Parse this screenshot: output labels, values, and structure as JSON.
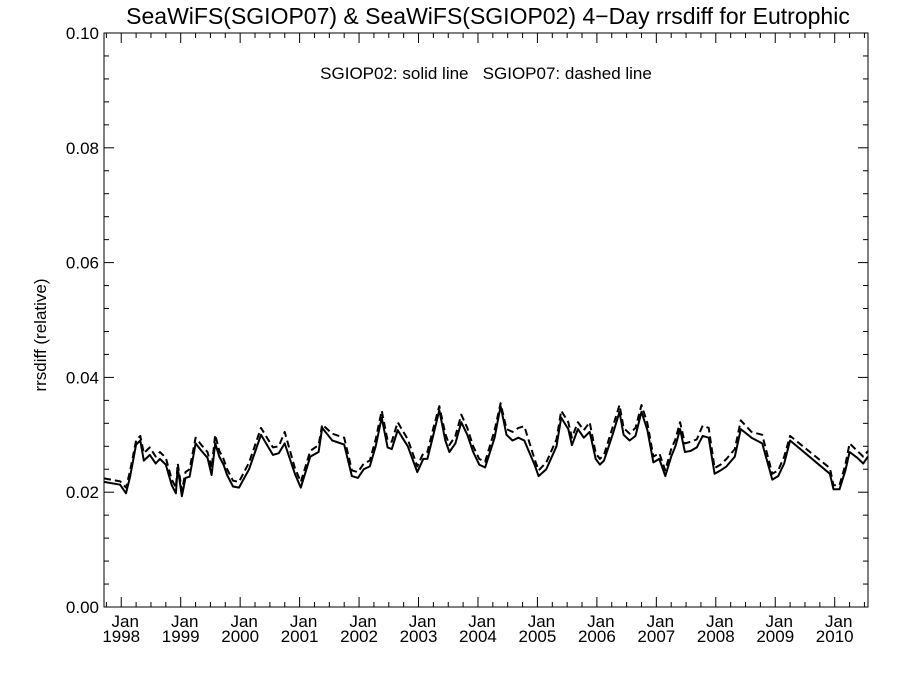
{
  "chart_data": {
    "type": "line",
    "title": "SeaWiFS(SGIOP07) & SeaWiFS(SGIOP02) 4−Day rrsdiff for Eutrophic",
    "annotation": "SGIOP02: solid line   SGIOP07: dashed line",
    "xlabel": "",
    "ylabel": "rrsdiff (relative)",
    "xlim": [
      1997.71,
      2010.56
    ],
    "ylim": [
      0.0,
      0.1
    ],
    "grid": false,
    "legend": "none",
    "y_ticks": [
      {
        "value": 0.0,
        "label": "0.00"
      },
      {
        "value": 0.02,
        "label": "0.02"
      },
      {
        "value": 0.04,
        "label": "0.04"
      },
      {
        "value": 0.06,
        "label": "0.06"
      },
      {
        "value": 0.08,
        "label": "0.08"
      },
      {
        "value": 0.1,
        "label": "0.10"
      }
    ],
    "x_ticks": [
      {
        "value": 1998,
        "month": "Jan",
        "year": "1998"
      },
      {
        "value": 1999,
        "month": "Jan",
        "year": "1999"
      },
      {
        "value": 2000,
        "month": "Jan",
        "year": "2000"
      },
      {
        "value": 2001,
        "month": "Jan",
        "year": "2001"
      },
      {
        "value": 2002,
        "month": "Jan",
        "year": "2002"
      },
      {
        "value": 2003,
        "month": "Jan",
        "year": "2003"
      },
      {
        "value": 2004,
        "month": "Jan",
        "year": "2004"
      },
      {
        "value": 2005,
        "month": "Jan",
        "year": "2005"
      },
      {
        "value": 2006,
        "month": "Jan",
        "year": "2006"
      },
      {
        "value": 2007,
        "month": "Jan",
        "year": "2007"
      },
      {
        "value": 2008,
        "month": "Jan",
        "year": "2008"
      },
      {
        "value": 2009,
        "month": "Jan",
        "year": "2009"
      },
      {
        "value": 2010,
        "month": "Jan",
        "year": "2010"
      }
    ],
    "series": [
      {
        "style": "solid",
        "points": [
          [
            1997.71,
            0.0218
          ],
          [
            1997.98,
            0.0213
          ],
          [
            1998.08,
            0.0198
          ],
          [
            1998.15,
            0.0228
          ],
          [
            1998.25,
            0.0283
          ],
          [
            1998.32,
            0.029
          ],
          [
            1998.38,
            0.0255
          ],
          [
            1998.48,
            0.0265
          ],
          [
            1998.58,
            0.025
          ],
          [
            1998.65,
            0.0258
          ],
          [
            1998.75,
            0.0248
          ],
          [
            1998.85,
            0.0212
          ],
          [
            1998.92,
            0.0198
          ],
          [
            1998.95,
            0.0243
          ],
          [
            1999.02,
            0.0193
          ],
          [
            1999.08,
            0.0225
          ],
          [
            1999.15,
            0.0227
          ],
          [
            1999.25,
            0.0285
          ],
          [
            1999.35,
            0.0272
          ],
          [
            1999.45,
            0.026
          ],
          [
            1999.52,
            0.023
          ],
          [
            1999.58,
            0.0285
          ],
          [
            1999.65,
            0.0262
          ],
          [
            1999.72,
            0.0248
          ],
          [
            1999.78,
            0.023
          ],
          [
            1999.88,
            0.021
          ],
          [
            1999.98,
            0.0208
          ],
          [
            2000.15,
            0.024
          ],
          [
            2000.35,
            0.03
          ],
          [
            2000.55,
            0.0265
          ],
          [
            2000.65,
            0.0268
          ],
          [
            2000.75,
            0.0285
          ],
          [
            2000.92,
            0.0232
          ],
          [
            2001.02,
            0.0208
          ],
          [
            2001.18,
            0.0262
          ],
          [
            2001.32,
            0.027
          ],
          [
            2001.38,
            0.0312
          ],
          [
            2001.55,
            0.029
          ],
          [
            2001.75,
            0.0283
          ],
          [
            2001.88,
            0.0228
          ],
          [
            2001.98,
            0.0225
          ],
          [
            2002.08,
            0.024
          ],
          [
            2002.18,
            0.0245
          ],
          [
            2002.28,
            0.028
          ],
          [
            2002.38,
            0.033
          ],
          [
            2002.48,
            0.0278
          ],
          [
            2002.55,
            0.0275
          ],
          [
            2002.65,
            0.0308
          ],
          [
            2002.82,
            0.028
          ],
          [
            2002.98,
            0.0235
          ],
          [
            2003.08,
            0.0258
          ],
          [
            2003.15,
            0.0258
          ],
          [
            2003.25,
            0.03
          ],
          [
            2003.35,
            0.0343
          ],
          [
            2003.45,
            0.029
          ],
          [
            2003.52,
            0.027
          ],
          [
            2003.62,
            0.0285
          ],
          [
            2003.72,
            0.0322
          ],
          [
            2003.82,
            0.03
          ],
          [
            2003.92,
            0.027
          ],
          [
            2004.02,
            0.0248
          ],
          [
            2004.12,
            0.0243
          ],
          [
            2004.28,
            0.0295
          ],
          [
            2004.38,
            0.035
          ],
          [
            2004.48,
            0.03
          ],
          [
            2004.58,
            0.029
          ],
          [
            2004.68,
            0.0295
          ],
          [
            2004.78,
            0.029
          ],
          [
            2004.95,
            0.0248
          ],
          [
            2005.02,
            0.0228
          ],
          [
            2005.15,
            0.024
          ],
          [
            2005.32,
            0.028
          ],
          [
            2005.4,
            0.033
          ],
          [
            2005.52,
            0.031
          ],
          [
            2005.58,
            0.0282
          ],
          [
            2005.68,
            0.031
          ],
          [
            2005.78,
            0.0295
          ],
          [
            2005.88,
            0.0305
          ],
          [
            2005.98,
            0.0258
          ],
          [
            2006.05,
            0.0248
          ],
          [
            2006.12,
            0.0255
          ],
          [
            2006.28,
            0.0305
          ],
          [
            2006.38,
            0.034
          ],
          [
            2006.45,
            0.03
          ],
          [
            2006.55,
            0.029
          ],
          [
            2006.65,
            0.0298
          ],
          [
            2006.75,
            0.034
          ],
          [
            2006.85,
            0.0308
          ],
          [
            2006.95,
            0.0252
          ],
          [
            2007.05,
            0.0258
          ],
          [
            2007.15,
            0.0228
          ],
          [
            2007.25,
            0.0262
          ],
          [
            2007.32,
            0.028
          ],
          [
            2007.4,
            0.031
          ],
          [
            2007.48,
            0.027
          ],
          [
            2007.58,
            0.0272
          ],
          [
            2007.68,
            0.0278
          ],
          [
            2007.78,
            0.0298
          ],
          [
            2007.88,
            0.0295
          ],
          [
            2007.98,
            0.0232
          ],
          [
            2008.08,
            0.0238
          ],
          [
            2008.18,
            0.0245
          ],
          [
            2008.32,
            0.0262
          ],
          [
            2008.42,
            0.031
          ],
          [
            2008.6,
            0.0295
          ],
          [
            2008.78,
            0.0285
          ],
          [
            2008.95,
            0.0222
          ],
          [
            2009.05,
            0.0228
          ],
          [
            2009.15,
            0.025
          ],
          [
            2009.25,
            0.029
          ],
          [
            2009.92,
            0.0232
          ],
          [
            2009.98,
            0.0205
          ],
          [
            2010.08,
            0.0205
          ],
          [
            2010.18,
            0.0238
          ],
          [
            2010.25,
            0.027
          ],
          [
            2010.38,
            0.026
          ],
          [
            2010.48,
            0.025
          ],
          [
            2010.56,
            0.0262
          ]
        ]
      },
      {
        "style": "dashed",
        "points": [
          [
            1997.71,
            0.0224
          ],
          [
            1997.98,
            0.0219
          ],
          [
            1998.08,
            0.0208
          ],
          [
            1998.15,
            0.0238
          ],
          [
            1998.25,
            0.029
          ],
          [
            1998.32,
            0.0298
          ],
          [
            1998.38,
            0.0268
          ],
          [
            1998.48,
            0.0278
          ],
          [
            1998.58,
            0.0262
          ],
          [
            1998.65,
            0.027
          ],
          [
            1998.75,
            0.026
          ],
          [
            1998.85,
            0.0222
          ],
          [
            1998.92,
            0.0208
          ],
          [
            1998.95,
            0.025
          ],
          [
            1999.02,
            0.0203
          ],
          [
            1999.08,
            0.0235
          ],
          [
            1999.15,
            0.024
          ],
          [
            1999.25,
            0.0295
          ],
          [
            1999.35,
            0.0282
          ],
          [
            1999.45,
            0.027
          ],
          [
            1999.52,
            0.0242
          ],
          [
            1999.58,
            0.03
          ],
          [
            1999.65,
            0.0272
          ],
          [
            1999.72,
            0.0258
          ],
          [
            1999.78,
            0.024
          ],
          [
            1999.88,
            0.022
          ],
          [
            1999.98,
            0.0218
          ],
          [
            2000.15,
            0.0252
          ],
          [
            2000.35,
            0.0312
          ],
          [
            2000.55,
            0.0278
          ],
          [
            2000.65,
            0.028
          ],
          [
            2000.75,
            0.0305
          ],
          [
            2000.92,
            0.0242
          ],
          [
            2001.02,
            0.0218
          ],
          [
            2001.18,
            0.0272
          ],
          [
            2001.32,
            0.0282
          ],
          [
            2001.38,
            0.0318
          ],
          [
            2001.55,
            0.0302
          ],
          [
            2001.75,
            0.0295
          ],
          [
            2001.88,
            0.0238
          ],
          [
            2001.98,
            0.0235
          ],
          [
            2002.08,
            0.025
          ],
          [
            2002.18,
            0.0255
          ],
          [
            2002.28,
            0.0292
          ],
          [
            2002.38,
            0.0342
          ],
          [
            2002.48,
            0.029
          ],
          [
            2002.55,
            0.0288
          ],
          [
            2002.65,
            0.0322
          ],
          [
            2002.82,
            0.0292
          ],
          [
            2002.98,
            0.0245
          ],
          [
            2003.08,
            0.0268
          ],
          [
            2003.15,
            0.027
          ],
          [
            2003.25,
            0.0312
          ],
          [
            2003.35,
            0.035
          ],
          [
            2003.45,
            0.0302
          ],
          [
            2003.52,
            0.0282
          ],
          [
            2003.62,
            0.0298
          ],
          [
            2003.72,
            0.0335
          ],
          [
            2003.82,
            0.0312
          ],
          [
            2003.92,
            0.028
          ],
          [
            2004.02,
            0.0258
          ],
          [
            2004.12,
            0.0253
          ],
          [
            2004.28,
            0.0308
          ],
          [
            2004.38,
            0.0355
          ],
          [
            2004.48,
            0.031
          ],
          [
            2004.58,
            0.0305
          ],
          [
            2004.68,
            0.0312
          ],
          [
            2004.78,
            0.0315
          ],
          [
            2004.95,
            0.0258
          ],
          [
            2005.02,
            0.0238
          ],
          [
            2005.15,
            0.0252
          ],
          [
            2005.32,
            0.0292
          ],
          [
            2005.4,
            0.0342
          ],
          [
            2005.52,
            0.0322
          ],
          [
            2005.58,
            0.0295
          ],
          [
            2005.68,
            0.0322
          ],
          [
            2005.78,
            0.0308
          ],
          [
            2005.88,
            0.0322
          ],
          [
            2005.98,
            0.0268
          ],
          [
            2006.05,
            0.0258
          ],
          [
            2006.12,
            0.0265
          ],
          [
            2006.28,
            0.0318
          ],
          [
            2006.38,
            0.0352
          ],
          [
            2006.45,
            0.0312
          ],
          [
            2006.55,
            0.0302
          ],
          [
            2006.65,
            0.0312
          ],
          [
            2006.75,
            0.0352
          ],
          [
            2006.85,
            0.032
          ],
          [
            2006.95,
            0.0262
          ],
          [
            2007.05,
            0.0268
          ],
          [
            2007.15,
            0.0238
          ],
          [
            2007.25,
            0.0275
          ],
          [
            2007.32,
            0.0292
          ],
          [
            2007.4,
            0.0322
          ],
          [
            2007.48,
            0.0285
          ],
          [
            2007.58,
            0.0288
          ],
          [
            2007.68,
            0.0292
          ],
          [
            2007.78,
            0.0316
          ],
          [
            2007.88,
            0.0312
          ],
          [
            2007.98,
            0.0242
          ],
          [
            2008.08,
            0.0248
          ],
          [
            2008.18,
            0.0258
          ],
          [
            2008.32,
            0.0275
          ],
          [
            2008.42,
            0.0325
          ],
          [
            2008.6,
            0.0305
          ],
          [
            2008.78,
            0.03
          ],
          [
            2008.95,
            0.0232
          ],
          [
            2009.05,
            0.0238
          ],
          [
            2009.15,
            0.0262
          ],
          [
            2009.25,
            0.0298
          ],
          [
            2009.92,
            0.0242
          ],
          [
            2009.98,
            0.0212
          ],
          [
            2010.08,
            0.0212
          ],
          [
            2010.18,
            0.0248
          ],
          [
            2010.25,
            0.0285
          ],
          [
            2010.38,
            0.0272
          ],
          [
            2010.48,
            0.0262
          ],
          [
            2010.56,
            0.0272
          ]
        ]
      }
    ]
  }
}
